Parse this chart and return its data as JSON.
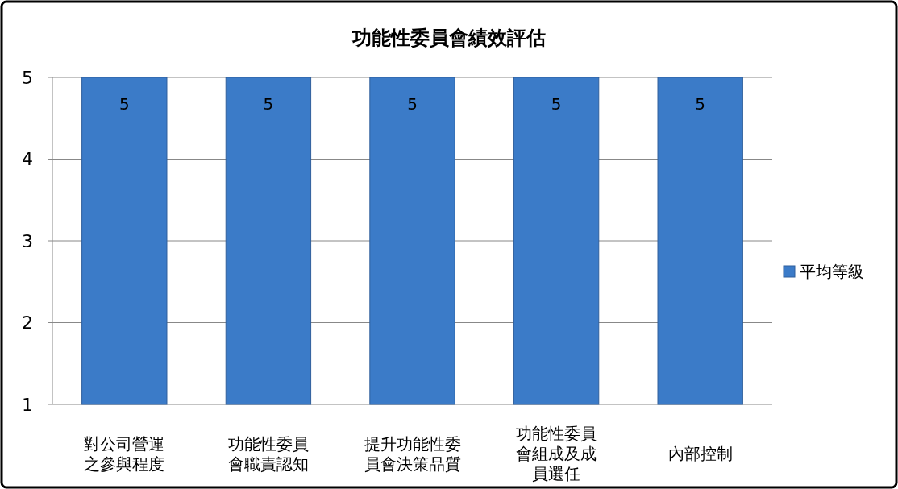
{
  "chart_data": {
    "type": "bar",
    "title": "功能性委員會績效評估",
    "categories": [
      "對公司營運之參與程度",
      "功能性委員會職責認知",
      "提升功能性委員會決策品質",
      "功能性委員會組成及成員選任",
      "內部控制"
    ],
    "series": [
      {
        "name": "平均等級",
        "color": "#3b7bc8",
        "values": [
          5,
          5,
          5,
          5,
          5
        ]
      }
    ],
    "ylim": [
      1,
      5
    ],
    "yticks": [
      1,
      2,
      3,
      4,
      5
    ],
    "grid": "y",
    "legend": "right",
    "data_labels": true
  }
}
